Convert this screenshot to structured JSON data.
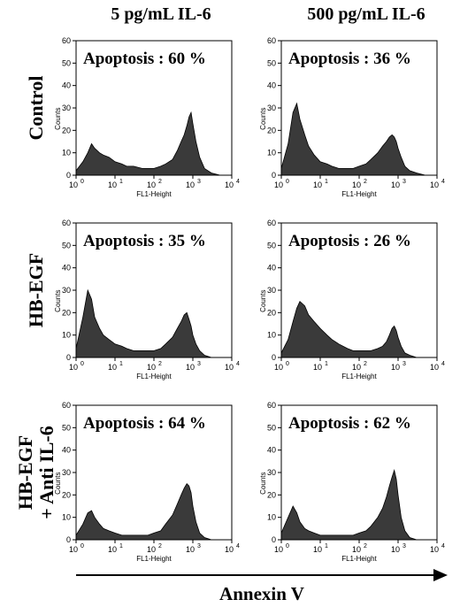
{
  "figure": {
    "columns": [
      "5 pg/mL IL-6",
      "500 pg/mL IL-6"
    ],
    "rows": [
      {
        "lines": [
          "Control"
        ]
      },
      {
        "lines": [
          "HB-EGF"
        ]
      },
      {
        "lines": [
          "HB-EGF",
          "+ Anti IL-6"
        ]
      }
    ],
    "x_arrow_label": "Annexin V"
  },
  "chart_data": [
    {
      "type": "area",
      "row": 0,
      "col": 0,
      "annotation": "Apoptosis : 60 %",
      "xlabel": "FL1-Height",
      "ylabel": "Counts",
      "xscale": "log",
      "xlim": [
        1,
        10000
      ],
      "ylim": [
        0,
        60
      ],
      "x": [
        1.0,
        1.5,
        2.0,
        2.5,
        3.0,
        4.0,
        5.0,
        7.0,
        10,
        15,
        20,
        30,
        50,
        70,
        100,
        150,
        200,
        300,
        400,
        500,
        600,
        700,
        800,
        900,
        1000,
        1200,
        1500,
        2000,
        3000,
        5000,
        10000
      ],
      "y": [
        2,
        6,
        10,
        14,
        12,
        10,
        9,
        8,
        6,
        5,
        4,
        4,
        3,
        3,
        3,
        4,
        5,
        7,
        11,
        15,
        18,
        22,
        26,
        28,
        23,
        15,
        8,
        3,
        1,
        0,
        0
      ]
    },
    {
      "type": "area",
      "row": 0,
      "col": 1,
      "annotation": "Apoptosis : 36 %",
      "xlabel": "FL1-Height",
      "ylabel": "Counts",
      "xscale": "log",
      "xlim": [
        1,
        10000
      ],
      "ylim": [
        0,
        60
      ],
      "x": [
        1.0,
        1.5,
        2.0,
        2.5,
        3.0,
        4.0,
        5.0,
        7.0,
        10,
        15,
        20,
        30,
        50,
        70,
        100,
        150,
        200,
        300,
        400,
        500,
        600,
        700,
        800,
        900,
        1000,
        1200,
        1500,
        2000,
        3000,
        5000,
        10000
      ],
      "y": [
        3,
        14,
        28,
        32,
        25,
        18,
        13,
        9,
        6,
        5,
        4,
        3,
        3,
        3,
        4,
        5,
        7,
        10,
        13,
        15,
        17,
        18,
        17,
        15,
        12,
        8,
        4,
        2,
        1,
        0,
        0
      ]
    },
    {
      "type": "area",
      "row": 1,
      "col": 0,
      "annotation": "Apoptosis : 35 %",
      "xlabel": "FL1-Height",
      "ylabel": "Counts",
      "xscale": "log",
      "xlim": [
        1,
        10000
      ],
      "ylim": [
        0,
        60
      ],
      "x": [
        1.0,
        1.5,
        2.0,
        2.5,
        3.0,
        4.0,
        5.0,
        7.0,
        10,
        15,
        20,
        30,
        50,
        70,
        100,
        150,
        200,
        300,
        400,
        500,
        600,
        700,
        800,
        900,
        1000,
        1200,
        1500,
        2000,
        3000,
        5000,
        10000
      ],
      "y": [
        4,
        18,
        30,
        26,
        18,
        13,
        10,
        8,
        6,
        5,
        4,
        3,
        3,
        3,
        3,
        4,
        6,
        9,
        13,
        16,
        19,
        20,
        17,
        14,
        10,
        6,
        3,
        1,
        0,
        0,
        0
      ]
    },
    {
      "type": "area",
      "row": 1,
      "col": 1,
      "annotation": "Apoptosis : 26 %",
      "xlabel": "FL1-Height",
      "ylabel": "Counts",
      "xscale": "log",
      "xlim": [
        1,
        10000
      ],
      "ylim": [
        0,
        60
      ],
      "x": [
        1.0,
        1.5,
        2.0,
        2.5,
        3.0,
        4.0,
        5.0,
        7.0,
        10,
        15,
        20,
        30,
        50,
        70,
        100,
        150,
        200,
        300,
        400,
        500,
        600,
        700,
        800,
        900,
        1000,
        1200,
        1500,
        2000,
        3000,
        5000,
        10000
      ],
      "y": [
        2,
        8,
        16,
        22,
        25,
        23,
        19,
        16,
        13,
        10,
        8,
        6,
        4,
        3,
        3,
        3,
        3,
        4,
        5,
        7,
        10,
        13,
        14,
        12,
        9,
        5,
        2,
        1,
        0,
        0,
        0
      ]
    },
    {
      "type": "area",
      "row": 2,
      "col": 0,
      "annotation": "Apoptosis : 64 %",
      "xlabel": "FL1-Height",
      "ylabel": "Counts",
      "xscale": "log",
      "xlim": [
        1,
        10000
      ],
      "ylim": [
        0,
        60
      ],
      "x": [
        1.0,
        1.5,
        2.0,
        2.5,
        3.0,
        4.0,
        5.0,
        7.0,
        10,
        15,
        20,
        30,
        50,
        70,
        100,
        150,
        200,
        300,
        400,
        500,
        600,
        700,
        800,
        900,
        1000,
        1200,
        1500,
        2000,
        3000,
        5000,
        10000
      ],
      "y": [
        2,
        7,
        12,
        13,
        10,
        7,
        5,
        4,
        3,
        2,
        2,
        2,
        2,
        2,
        3,
        4,
        7,
        11,
        16,
        20,
        23,
        25,
        24,
        21,
        15,
        8,
        3,
        1,
        0,
        0,
        0
      ]
    },
    {
      "type": "area",
      "row": 2,
      "col": 1,
      "annotation": "Apoptosis : 62 %",
      "xlabel": "FL1-Height",
      "ylabel": "Counts",
      "xscale": "log",
      "xlim": [
        1,
        10000
      ],
      "ylim": [
        0,
        60
      ],
      "x": [
        1.0,
        1.5,
        2.0,
        2.5,
        3.0,
        4.0,
        5.0,
        7.0,
        10,
        15,
        20,
        30,
        50,
        70,
        100,
        150,
        200,
        300,
        400,
        500,
        600,
        700,
        800,
        900,
        1000,
        1200,
        1500,
        2000,
        3000,
        5000,
        10000
      ],
      "y": [
        3,
        10,
        15,
        12,
        8,
        5,
        4,
        3,
        2,
        2,
        2,
        2,
        2,
        2,
        3,
        4,
        6,
        10,
        14,
        19,
        24,
        28,
        31,
        27,
        20,
        10,
        4,
        1,
        0,
        0,
        0
      ]
    }
  ]
}
